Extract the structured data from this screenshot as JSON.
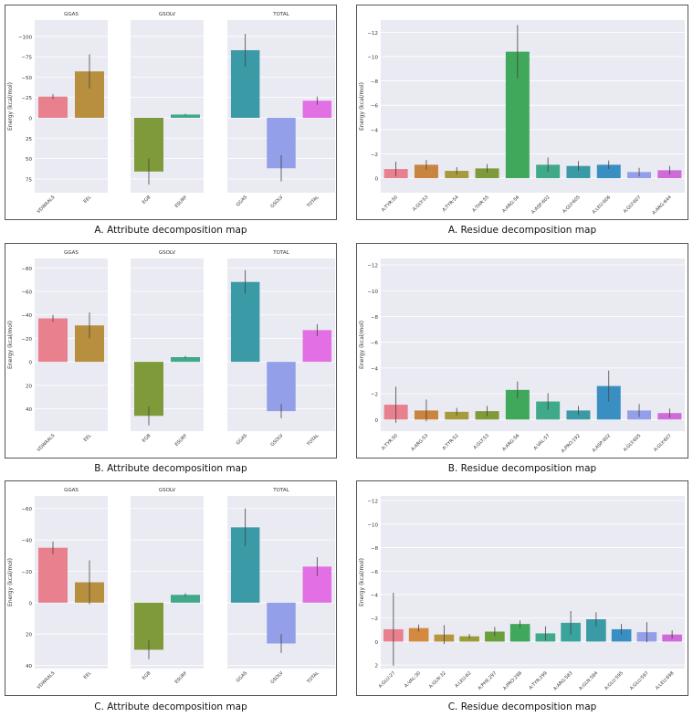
{
  "chart_data": [
    {
      "type": "bar",
      "id": "attr-A",
      "caption": "A. Attribute decomposition map",
      "ylabel": "Energy (kcal/mol)",
      "inverted_y": true,
      "ylim": [
        92,
        -120
      ],
      "yticks": [
        75,
        50,
        25,
        0,
        -25,
        -50,
        -75,
        -100
      ],
      "ytick_labels": [
        "75",
        "50",
        "25",
        "0",
        "−25",
        "−50",
        "−75",
        "−100"
      ],
      "panels": [
        {
          "title": "GGAS",
          "categories": [
            "VDWAALS",
            "EEL"
          ],
          "values": [
            -26,
            -57
          ],
          "errors": [
            3,
            21
          ],
          "colors": [
            "#e8808e",
            "#b88f3e"
          ]
        },
        {
          "title": "GSOLV",
          "categories": [
            "EGB",
            "ESURF"
          ],
          "values": [
            66,
            -4
          ],
          "errors": [
            16,
            1
          ],
          "colors": [
            "#7f9a3a",
            "#3fa98a"
          ]
        },
        {
          "title": "TOTAL",
          "categories": [
            "GGAS",
            "GSOLV",
            "TOTAL"
          ],
          "values": [
            -83,
            62,
            -21
          ],
          "errors": [
            20,
            16,
            5
          ],
          "colors": [
            "#3a9aa6",
            "#939fe8",
            "#e26fe3"
          ]
        }
      ]
    },
    {
      "type": "bar",
      "id": "res-A",
      "caption": "A. Residue decomposition map",
      "ylabel": "Energy (kcal/mol)",
      "inverted_y": true,
      "ylim": [
        1.2,
        -13
      ],
      "yticks": [
        0,
        -2,
        -4,
        -6,
        -8,
        -10,
        -12
      ],
      "ytick_labels": [
        "0",
        "−2",
        "−4",
        "−6",
        "−8",
        "−10",
        "−12"
      ],
      "categories": [
        "A:TYR:50",
        "A:GLY:53",
        "A:TYR:54",
        "A:THR:55",
        "A:ARG:56",
        "A:ASP:602",
        "A:GLY:605",
        "A:LEU:606",
        "A:GLY:607",
        "A:ARG:644"
      ],
      "values": [
        -0.75,
        -1.1,
        -0.6,
        -0.8,
        -10.4,
        -1.1,
        -1.0,
        -1.1,
        -0.5,
        -0.65
      ],
      "errors": [
        0.6,
        0.4,
        0.3,
        0.35,
        2.2,
        0.6,
        0.4,
        0.35,
        0.35,
        0.35
      ],
      "colors": [
        "#e8808e",
        "#c9843f",
        "#a59a3d",
        "#7f9a3a",
        "#3fa85a",
        "#3fa98a",
        "#3a9aa6",
        "#3a8fc2",
        "#939fe8",
        "#cf6ad9"
      ]
    },
    {
      "type": "bar",
      "id": "attr-B",
      "caption": "B. Attribute decomposition map",
      "ylabel": "Energy (kcal/mol)",
      "inverted_y": true,
      "ylim": [
        59,
        -88
      ],
      "yticks": [
        40,
        20,
        0,
        -20,
        -40,
        -60,
        -80
      ],
      "ytick_labels": [
        "40",
        "20",
        "0",
        "−20",
        "−40",
        "−60",
        "−80"
      ],
      "panels": [
        {
          "title": "GGAS",
          "categories": [
            "VDWAALS",
            "EEL"
          ],
          "values": [
            -37,
            -31
          ],
          "errors": [
            3,
            11
          ],
          "colors": [
            "#e8808e",
            "#b88f3e"
          ]
        },
        {
          "title": "GSOLV",
          "categories": [
            "EGB",
            "ESURF"
          ],
          "values": [
            46,
            -4
          ],
          "errors": [
            8,
            1
          ],
          "colors": [
            "#7f9a3a",
            "#3fa98a"
          ]
        },
        {
          "title": "TOTAL",
          "categories": [
            "GGAS",
            "GSOLV",
            "TOTAL"
          ],
          "values": [
            -68,
            42,
            -27
          ],
          "errors": [
            10,
            6,
            5
          ],
          "colors": [
            "#3a9aa6",
            "#939fe8",
            "#e26fe3"
          ]
        }
      ]
    },
    {
      "type": "bar",
      "id": "res-B",
      "caption": "B. Residue decomposition map",
      "ylabel": "Energy (kcal/mol)",
      "inverted_y": true,
      "ylim": [
        0.9,
        -12.5
      ],
      "yticks": [
        0,
        -2,
        -4,
        -6,
        -8,
        -10,
        -12
      ],
      "ytick_labels": [
        "0",
        "−2",
        "−4",
        "−6",
        "−8",
        "−10",
        "−12"
      ],
      "categories": [
        "A:TYR:50",
        "A:ARG:53",
        "A:TYR:52",
        "A:GLY:53",
        "A:ARG:56",
        "A:VAL:57",
        "A:PRO:192",
        "A:ASP:602",
        "A:GLY:605",
        "A:GLY:607"
      ],
      "values": [
        -1.15,
        -0.7,
        -0.6,
        -0.65,
        -2.3,
        -1.4,
        -0.7,
        -2.6,
        -0.7,
        -0.5
      ],
      "errors": [
        1.4,
        0.85,
        0.3,
        0.4,
        0.65,
        0.65,
        0.35,
        1.2,
        0.5,
        0.35
      ],
      "colors": [
        "#e8808e",
        "#c9843f",
        "#a59a3d",
        "#7f9a3a",
        "#3fa85a",
        "#3fa98a",
        "#3a9aa6",
        "#3a8fc2",
        "#939fe8",
        "#cf6ad9"
      ]
    },
    {
      "type": "bar",
      "id": "attr-C",
      "caption": "C. Attribute decomposition map",
      "ylabel": "Energy (kcal/mol)",
      "inverted_y": true,
      "ylim": [
        42,
        -68
      ],
      "yticks": [
        40,
        20,
        0,
        -20,
        -40,
        -60
      ],
      "ytick_labels": [
        "40",
        "20",
        "0",
        "−20",
        "−40",
        "−60"
      ],
      "panels": [
        {
          "title": "GGAS",
          "categories": [
            "VDWAALS",
            "EEL"
          ],
          "values": [
            -35,
            -13
          ],
          "errors": [
            4,
            14
          ],
          "colors": [
            "#e8808e",
            "#b88f3e"
          ]
        },
        {
          "title": "GSOLV",
          "categories": [
            "EGB",
            "ESURF"
          ],
          "values": [
            30,
            -5
          ],
          "errors": [
            6,
            1
          ],
          "colors": [
            "#7f9a3a",
            "#3fa98a"
          ]
        },
        {
          "title": "TOTAL",
          "categories": [
            "GGAS",
            "GSOLV",
            "TOTAL"
          ],
          "values": [
            -48,
            26,
            -23
          ],
          "errors": [
            12,
            6,
            6
          ],
          "colors": [
            "#3a9aa6",
            "#939fe8",
            "#e26fe3"
          ]
        }
      ]
    },
    {
      "type": "bar",
      "id": "res-C",
      "caption": "C. Residue decomposition map",
      "ylabel": "Energy (kcal/mol)",
      "inverted_y": true,
      "ylim": [
        2.3,
        -12.4
      ],
      "yticks": [
        2,
        0,
        -2,
        -4,
        -6,
        -8,
        -10,
        -12
      ],
      "ytick_labels": [
        "2",
        "0",
        "−2",
        "−4",
        "−6",
        "−8",
        "−10",
        "−12"
      ],
      "categories": [
        "A:GLU:27",
        "A:VAL:30",
        "A:GLN:32",
        "A:LEU:62",
        "A:PHE:297",
        "A:PRO:298",
        "A:TYR:299",
        "A:ARG:583",
        "A:GLN:584",
        "A:GLU:595",
        "A:GLU:597",
        "A:LEU:698"
      ],
      "values": [
        -1.05,
        -1.15,
        -0.6,
        -0.45,
        -0.85,
        -1.5,
        -0.7,
        -1.6,
        -1.9,
        -1.05,
        -0.8,
        -0.6
      ],
      "errors": [
        3.1,
        0.3,
        0.8,
        0.2,
        0.4,
        0.3,
        0.6,
        1.0,
        0.6,
        0.45,
        0.85,
        0.35
      ],
      "colors": [
        "#e8808e",
        "#d48a3e",
        "#b8953d",
        "#9a9c3a",
        "#6aa03c",
        "#3fa85a",
        "#3fa98a",
        "#3aa39e",
        "#3a9aa6",
        "#3a8fc2",
        "#939fe8",
        "#cf6ad9"
      ]
    }
  ]
}
